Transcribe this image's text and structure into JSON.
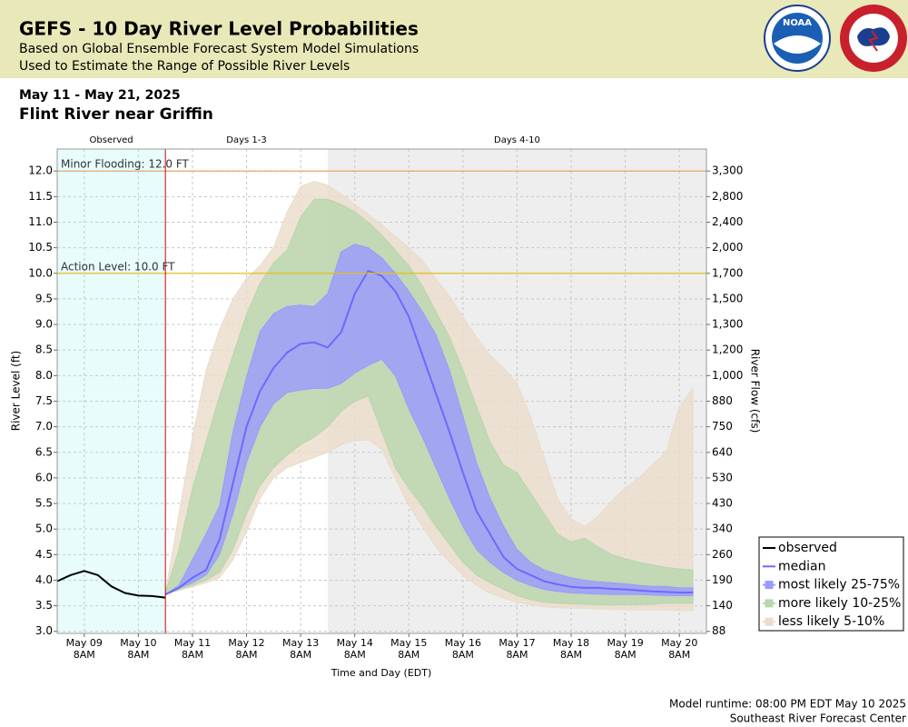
{
  "header": {
    "title": "GEFS - 10 Day River Level Probabilities",
    "subtitle": [
      "Based on Global Ensemble Forecast System Model Simulations",
      "Used to Estimate the Range of Possible River Levels"
    ],
    "logo_text": "NOAA"
  },
  "footer": [
    "Model runtime: 08:00 PM EDT May 10 2025",
    "Southeast River Forecast Center"
  ],
  "chart_data": {
    "type": "line",
    "subtitle": "May 11 - May 21, 2025",
    "title": "Flint River near Griffin",
    "xlabel": "Time and Day (EDT)",
    "ylabel": "River Level (ft)",
    "y2label": "River Flow (cfs)",
    "grid": true,
    "legend": "lower right",
    "xlim": [
      "May 08 8PM",
      "May 20 8PM"
    ],
    "xticks": [
      {
        "value": "May 09 8AM",
        "label": [
          "May 09",
          "8AM"
        ]
      },
      {
        "value": "May 10 8AM",
        "label": [
          "May 10",
          "8AM"
        ]
      },
      {
        "value": "May 11 8AM",
        "label": [
          "May 11",
          "8AM"
        ]
      },
      {
        "value": "May 12 8AM",
        "label": [
          "May 12",
          "8AM"
        ]
      },
      {
        "value": "May 13 8AM",
        "label": [
          "May 13",
          "8AM"
        ]
      },
      {
        "value": "May 14 8AM",
        "label": [
          "May 14",
          "8AM"
        ]
      },
      {
        "value": "May 15 8AM",
        "label": [
          "May 15",
          "8AM"
        ]
      },
      {
        "value": "May 16 8AM",
        "label": [
          "May 16",
          "8AM"
        ]
      },
      {
        "value": "May 17 8AM",
        "label": [
          "May 17",
          "8AM"
        ]
      },
      {
        "value": "May 18 8AM",
        "label": [
          "May 18",
          "8AM"
        ]
      },
      {
        "value": "May 19 8AM",
        "label": [
          "May 19",
          "8AM"
        ]
      },
      {
        "value": "May 20 8AM",
        "label": [
          "May 20",
          "8AM"
        ]
      }
    ],
    "ylim": [
      2.96,
      12.43
    ],
    "yticks": [
      {
        "value": 3,
        "label": "3.0"
      },
      3.5,
      {
        "value": 4,
        "label": "4.0"
      },
      4.5,
      {
        "value": 5,
        "label": "5.0"
      },
      5.5,
      {
        "value": 6,
        "label": "6.0"
      },
      6.5,
      {
        "value": 7,
        "label": "7.0"
      },
      7.5,
      {
        "value": 8,
        "label": "8.0"
      },
      8.5,
      {
        "value": 9,
        "label": "9.0"
      },
      9.5,
      {
        "value": 10,
        "label": "10.0"
      },
      10.5,
      {
        "value": 11,
        "label": "11.0"
      },
      11.5,
      {
        "value": 12,
        "label": "12.0"
      }
    ],
    "y2ticks": [
      88,
      140,
      190,
      260,
      340,
      430,
      530,
      640,
      750,
      880,
      {
        "value": 1000,
        "label": "1,000"
      },
      {
        "value": 1200,
        "label": "1,200"
      },
      {
        "value": 1300,
        "label": "1,300"
      },
      {
        "value": 1500,
        "label": "1,500"
      },
      {
        "value": 1700,
        "label": "1,700"
      },
      {
        "value": 2000,
        "label": "2,000"
      },
      {
        "value": 2400,
        "label": "2,400"
      },
      {
        "value": 2800,
        "label": "2,800"
      },
      {
        "value": 3300,
        "label": "3,300"
      }
    ],
    "periods": [
      {
        "label": "Observed",
        "start": "May 08 8PM",
        "end": "May 10 8PM",
        "color": "#e8fcfc"
      },
      {
        "label": "Days 1-3",
        "start": "May 10 8PM",
        "end": "May 13 8PM",
        "color": "#ffffff"
      },
      {
        "label": "Days 4-10",
        "start": "May 13 8PM",
        "end": "May 20 8PM",
        "color": "#eeeeee"
      }
    ],
    "now_line": {
      "x": "May 10 8PM",
      "color": "#cc0000"
    },
    "thresholds": [
      {
        "label": "Minor Flooding: 12.0 FT",
        "value": 12.0,
        "color": "#e8a060"
      },
      {
        "label": "Action Level: 10.0 FT",
        "value": 10.0,
        "color": "#e0c020"
      }
    ],
    "x": [
      "May 10 8PM",
      "May 11 2AM",
      "May 11 8AM",
      "May 11 2PM",
      "May 11 8PM",
      "May 12 2AM",
      "May 12 8AM",
      "May 12 2PM",
      "May 12 8PM",
      "May 13 2AM",
      "May 13 8AM",
      "May 13 2PM",
      "May 13 8PM",
      "May 14 2AM",
      "May 14 8AM",
      "May 14 2PM",
      "May 14 8PM",
      "May 15 2AM",
      "May 15 8AM",
      "May 15 2PM",
      "May 15 8PM",
      "May 16 2AM",
      "May 16 8AM",
      "May 16 2PM",
      "May 16 8PM",
      "May 17 2AM",
      "May 17 8AM",
      "May 17 2PM",
      "May 17 8PM",
      "May 18 2AM",
      "May 18 8AM",
      "May 18 2PM",
      "May 18 8PM",
      "May 19 2AM",
      "May 19 8AM",
      "May 19 2PM",
      "May 19 8PM",
      "May 20 2AM",
      "May 20 8AM",
      "May 20 2PM"
    ],
    "series": [
      {
        "name": "observed",
        "kind": "line",
        "color": "#000000",
        "x": [
          "May 08 8PM",
          "May 09 2AM",
          "May 09 8AM",
          "May 09 2PM",
          "May 09 8PM",
          "May 10 2AM",
          "May 10 8AM",
          "May 10 2PM",
          "May 10 8PM"
        ],
        "values": [
          3.98,
          4.1,
          4.18,
          4.1,
          3.88,
          3.75,
          3.7,
          3.69,
          3.66
        ]
      },
      {
        "name": "median",
        "kind": "line",
        "color": "#6a6aff",
        "values": [
          3.72,
          3.85,
          4.05,
          4.2,
          4.8,
          5.9,
          7.0,
          7.7,
          8.15,
          8.45,
          8.62,
          8.65,
          8.55,
          8.85,
          9.6,
          10.05,
          9.95,
          9.65,
          9.15,
          8.4,
          7.65,
          6.9,
          6.1,
          5.35,
          4.9,
          4.45,
          4.22,
          4.1,
          3.98,
          3.92,
          3.87,
          3.85,
          3.85,
          3.83,
          3.82,
          3.8,
          3.78,
          3.77,
          3.76,
          3.76
        ]
      },
      {
        "name": "most likely 25-75%",
        "kind": "band",
        "color": "#9a9aff",
        "upper": [
          3.72,
          3.9,
          4.4,
          4.9,
          5.45,
          6.9,
          7.97,
          8.86,
          9.21,
          9.35,
          9.38,
          9.35,
          9.6,
          10.42,
          10.57,
          10.5,
          10.3,
          10.0,
          9.65,
          9.25,
          8.8,
          8.1,
          7.2,
          6.3,
          5.6,
          5.05,
          4.6,
          4.35,
          4.2,
          4.12,
          4.05,
          4.0,
          3.97,
          3.95,
          3.93,
          3.9,
          3.88,
          3.88,
          3.85,
          3.85
        ],
        "lower": [
          3.72,
          3.85,
          3.95,
          4.1,
          4.5,
          5.3,
          6.3,
          7.0,
          7.45,
          7.67,
          7.72,
          7.75,
          7.75,
          7.85,
          8.05,
          8.2,
          8.32,
          8.0,
          7.35,
          6.8,
          6.2,
          5.6,
          5.05,
          4.6,
          4.35,
          4.15,
          4.0,
          3.9,
          3.82,
          3.78,
          3.75,
          3.74,
          3.73,
          3.72,
          3.72,
          3.72,
          3.71,
          3.7,
          3.7,
          3.7
        ]
      },
      {
        "name": "more likely 10-25%",
        "kind": "band",
        "color": "#b9d6ad",
        "upper": [
          3.75,
          4.6,
          5.8,
          6.7,
          7.6,
          8.4,
          9.2,
          9.8,
          10.2,
          10.45,
          11.1,
          11.45,
          11.45,
          11.35,
          11.2,
          11.0,
          10.75,
          10.45,
          10.15,
          9.75,
          9.25,
          8.75,
          8.1,
          7.4,
          6.7,
          6.25,
          6.1,
          5.7,
          5.3,
          4.9,
          4.75,
          4.82,
          4.65,
          4.5,
          4.42,
          4.35,
          4.3,
          4.25,
          4.22,
          4.2
        ],
        "lower": [
          3.72,
          3.82,
          3.9,
          4.0,
          4.15,
          4.6,
          5.3,
          5.85,
          6.2,
          6.45,
          6.65,
          6.8,
          7.0,
          7.3,
          7.5,
          7.6,
          6.9,
          6.2,
          5.8,
          5.45,
          5.05,
          4.7,
          4.35,
          4.1,
          3.95,
          3.82,
          3.7,
          3.62,
          3.57,
          3.55,
          3.54,
          3.53,
          3.52,
          3.52,
          3.52,
          3.52,
          3.53,
          3.55,
          3.55,
          3.55
        ]
      },
      {
        "name": "less likely 5-10%",
        "kind": "band",
        "color": "#eadccb",
        "upper": [
          3.75,
          5.3,
          6.8,
          8.1,
          8.9,
          9.5,
          9.9,
          10.15,
          10.5,
          11.2,
          11.7,
          11.8,
          11.72,
          11.55,
          11.35,
          11.15,
          10.95,
          10.72,
          10.5,
          10.25,
          9.9,
          9.55,
          9.15,
          8.75,
          8.4,
          8.15,
          7.85,
          7.2,
          6.4,
          5.6,
          5.2,
          5.05,
          5.25,
          5.55,
          5.8,
          6.0,
          6.25,
          6.5,
          7.4,
          7.75
        ],
        "lower": [
          3.72,
          3.8,
          3.87,
          3.95,
          4.05,
          4.4,
          4.95,
          5.6,
          6.0,
          6.2,
          6.3,
          6.4,
          6.5,
          6.65,
          6.72,
          6.75,
          6.55,
          6.0,
          5.45,
          5.05,
          4.65,
          4.35,
          4.1,
          3.9,
          3.75,
          3.65,
          3.57,
          3.52,
          3.48,
          3.46,
          3.45,
          3.45,
          3.44,
          3.43,
          3.42,
          3.42,
          3.42,
          3.42,
          3.41,
          3.4
        ]
      }
    ]
  }
}
